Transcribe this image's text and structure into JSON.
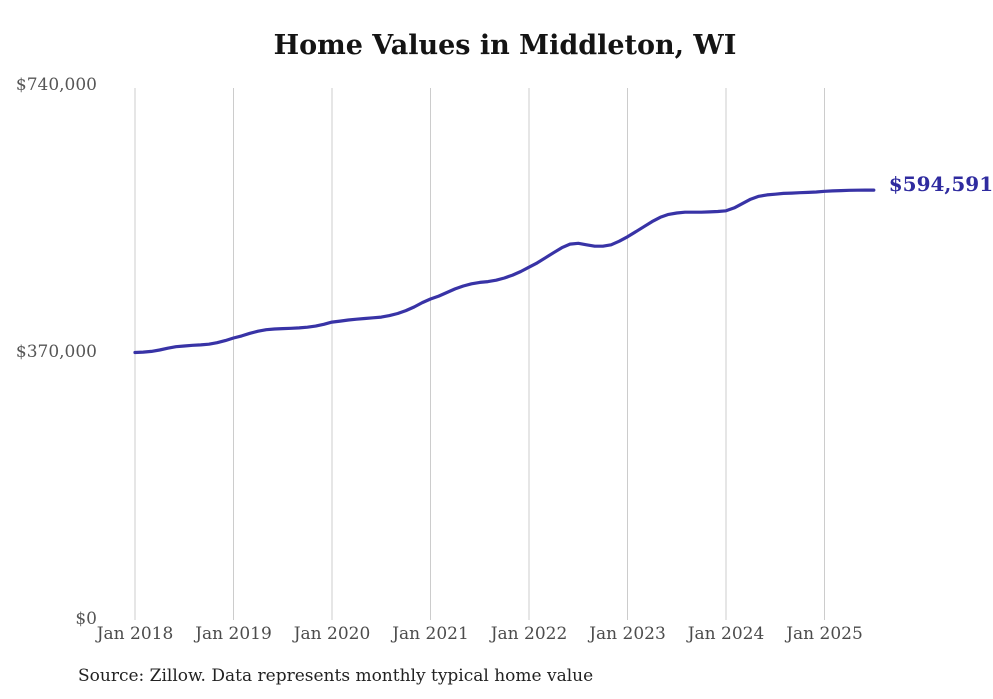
{
  "title": "Home Values in Middleton, WI",
  "source_note": "Source: Zillow. Data represents monthly typical home value",
  "end_label": "$594,591",
  "colors": {
    "line": "#3833a6",
    "grid": "#cccccc",
    "axis_text": "#565656",
    "title_text": "#141414",
    "end_label_text": "#2f2b9f",
    "source_text": "#222222"
  },
  "y_axis": {
    "ticks": [
      "$740,000",
      "$370,000",
      "$0"
    ]
  },
  "x_axis": {
    "ticks": [
      "Jan 2018",
      "Jan 2019",
      "Jan 2020",
      "Jan 2021",
      "Jan 2022",
      "Jan 2023",
      "Jan 2024",
      "Jan 2025"
    ]
  },
  "chart_data": {
    "type": "line",
    "title": "Home Values in Middleton, WI",
    "unit": "USD",
    "x_start": "2018-01",
    "x_end": "2025-07",
    "x_interval": "monthly",
    "ylim": [
      0,
      740000
    ],
    "y_ticks": [
      0,
      370000,
      740000
    ],
    "x_tick_labels": [
      "Jan 2018",
      "Jan 2019",
      "Jan 2020",
      "Jan 2021",
      "Jan 2022",
      "Jan 2023",
      "Jan 2024",
      "Jan 2025"
    ],
    "grid": "vertical-only",
    "legend": "none",
    "latest_value": 594591,
    "latest_value_label": "$594,591",
    "series": [
      {
        "name": "Monthly typical home value",
        "values": [
          370000,
          370500,
          371500,
          373500,
          376000,
          378000,
          379000,
          380000,
          380500,
          381500,
          383500,
          386500,
          390000,
          393000,
          396500,
          399500,
          401500,
          402500,
          403000,
          403500,
          404000,
          405000,
          406500,
          409000,
          412000,
          413500,
          415000,
          416000,
          417000,
          418000,
          419000,
          421000,
          424000,
          428000,
          433000,
          439000,
          444000,
          448000,
          453000,
          458000,
          462000,
          465000,
          467000,
          468000,
          470000,
          473000,
          477000,
          482000,
          488000,
          494000,
          501000,
          508000,
          515000,
          520000,
          521000,
          519000,
          517000,
          517000,
          519000,
          524000,
          530000,
          537000,
          544000,
          551000,
          557000,
          561000,
          563000,
          564000,
          564000,
          564000,
          564500,
          565000,
          566000,
          570000,
          576000,
          582000,
          586000,
          588000,
          589000,
          590000,
          590500,
          591000,
          591500,
          592000,
          593000,
          593500,
          594000,
          594300,
          594500,
          594591,
          594591
        ]
      }
    ]
  }
}
